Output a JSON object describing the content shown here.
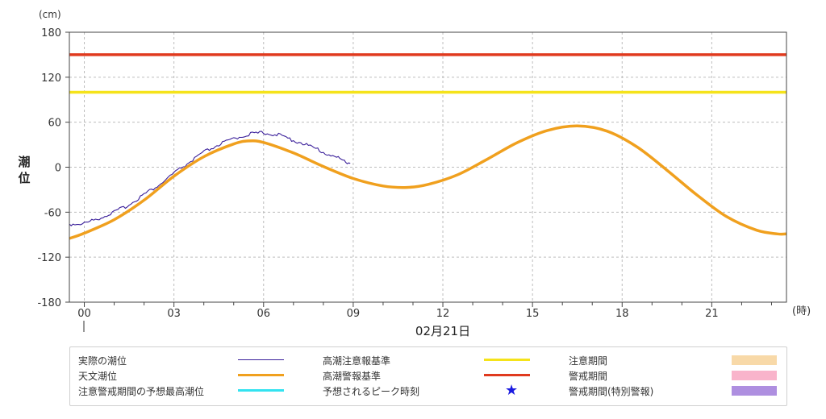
{
  "chart_data": {
    "type": "line",
    "title": "",
    "ylabel": "潮位",
    "ylabel_unit": "(cm)",
    "xlabel_unit": "(時)",
    "date_label": "02月21日",
    "ylim": [
      -180,
      180
    ],
    "yticks": [
      -180,
      -120,
      -60,
      0,
      60,
      120,
      180
    ],
    "xlim": [
      -0.5,
      23.5
    ],
    "xticks": [
      0,
      3,
      6,
      9,
      12,
      15,
      18,
      21
    ],
    "xtick_labels": [
      "00",
      "03",
      "06",
      "09",
      "12",
      "15",
      "18",
      "21"
    ],
    "grid": true,
    "series": [
      {
        "name": "実際の潮位",
        "color": "#3a1f9a",
        "x": [
          -0.5,
          0.0,
          0.5,
          1.0,
          1.5,
          2.0,
          2.5,
          3.0,
          3.5,
          4.0,
          4.5,
          5.0,
          5.5,
          6.0,
          6.5,
          7.0,
          7.5,
          8.0,
          8.5,
          8.9
        ],
        "y": [
          -76,
          -75,
          -68,
          -60,
          -50,
          -36,
          -24,
          -8,
          6,
          20,
          30,
          38,
          44,
          46,
          43,
          36,
          29,
          20,
          12,
          5
        ]
      },
      {
        "name": "天文潮位",
        "color": "#f0a01e",
        "x": [
          -0.5,
          0.0,
          1.0,
          2.0,
          3.0,
          4.0,
          5.0,
          5.5,
          6.0,
          7.0,
          8.0,
          9.0,
          10.0,
          10.8,
          11.5,
          12.5,
          13.5,
          14.5,
          15.5,
          16.5,
          17.5,
          18.5,
          19.5,
          20.5,
          21.5,
          22.5,
          23.2,
          23.5
        ],
        "y": [
          -95,
          -88,
          -70,
          -44,
          -12,
          14,
          31,
          35,
          33,
          19,
          1,
          -15,
          -25,
          -27,
          -23,
          -10,
          11,
          33,
          49,
          55,
          48,
          27,
          -4,
          -37,
          -66,
          -84,
          -89,
          -89
        ]
      }
    ],
    "thresholds": [
      {
        "name": "高潮注意報基準",
        "value": 100,
        "color": "#f5e31a"
      },
      {
        "name": "高潮警報基準",
        "value": 150,
        "color": "#e03a1e"
      }
    ],
    "legend_placement": "bottom",
    "legend": [
      {
        "label": "実際の潮位",
        "kind": "line-thin",
        "color": "#3a1f9a"
      },
      {
        "label": "天文潮位",
        "kind": "line-thick",
        "color": "#f0a01e"
      },
      {
        "label": "注意警戒期間の予想最高潮位",
        "kind": "line-thick",
        "color": "#33e3f0"
      },
      {
        "label": "高潮注意報基準",
        "kind": "line-thick",
        "color": "#f5e31a"
      },
      {
        "label": "高潮警報基準",
        "kind": "line-thick",
        "color": "#e03a1e"
      },
      {
        "label": "予想されるピーク時刻",
        "kind": "star",
        "color": "#1a1ae0",
        "symbol": "★"
      },
      {
        "label": "注意期間",
        "kind": "box",
        "color": "#f8d9a8"
      },
      {
        "label": "警戒期間",
        "kind": "box",
        "color": "#f9b4cb"
      },
      {
        "label": "警戒期間(特別警報)",
        "kind": "box",
        "color": "#ae8fe0"
      }
    ]
  }
}
